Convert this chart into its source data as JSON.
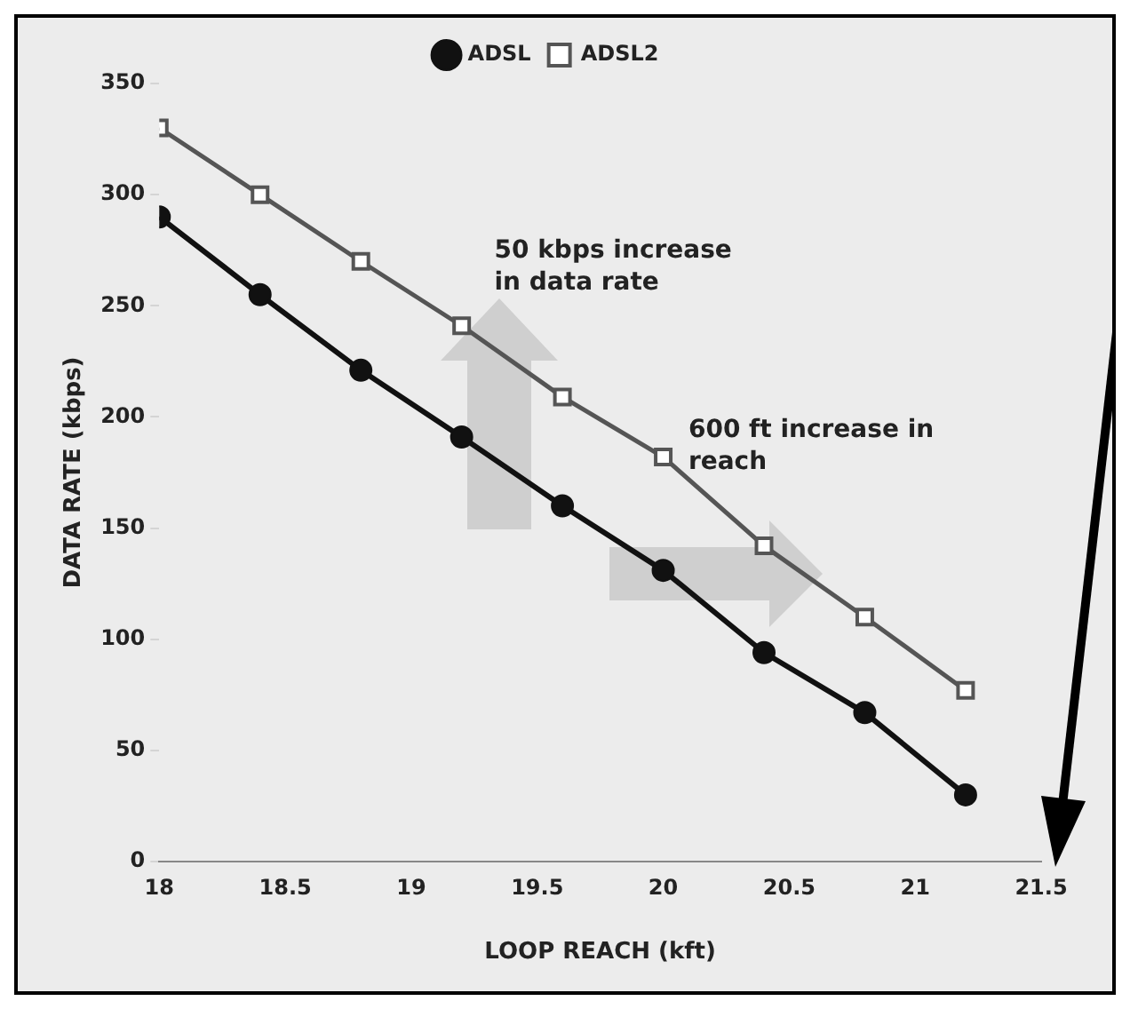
{
  "chart_data": {
    "type": "line",
    "xlabel": "LOOP REACH (kft)",
    "ylabel": "DATA RATE (kbps)",
    "series": [
      {
        "name": "ADSL",
        "color": "#111111",
        "marker": "circle",
        "x": [
          18,
          18.4,
          18.8,
          19.2,
          19.6,
          20,
          20.4,
          20.8,
          21.2
        ],
        "values": [
          290,
          255,
          221,
          191,
          160,
          131,
          94,
          67,
          30
        ]
      },
      {
        "name": "ADSL2",
        "color": "#555555",
        "marker": "square",
        "x": [
          18,
          18.4,
          18.8,
          19.2,
          19.6,
          20,
          20.4,
          20.8,
          21.2
        ],
        "values": [
          330,
          300,
          270,
          241,
          209,
          182,
          142,
          110,
          77
        ]
      }
    ],
    "xlim": [
      18,
      21.5
    ],
    "xticks": [
      18,
      18.5,
      19,
      19.5,
      20,
      20.5,
      21,
      21.5
    ],
    "ylim": [
      0,
      350
    ],
    "yticks": [
      0,
      50,
      100,
      150,
      200,
      250,
      300,
      350
    ],
    "grid": false,
    "legend": "top",
    "annotations": [
      "50 kbps increase in data rate",
      "600 ft increase in reach"
    ]
  }
}
